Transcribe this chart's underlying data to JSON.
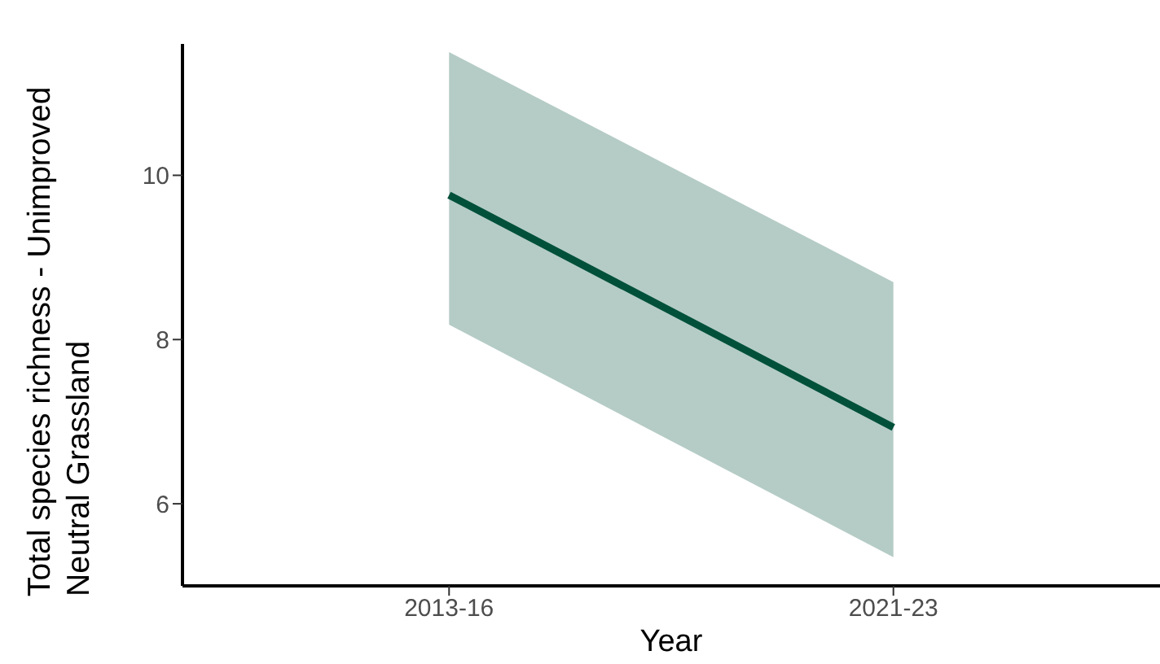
{
  "chart_data": {
    "type": "line",
    "xlabel": "Year",
    "ylabel": "Total species richness - Unimproved Neutral Grassland",
    "categories": [
      "2013-16",
      "2021-23"
    ],
    "series": [
      {
        "color": "#00503a",
        "values": [
          9.76,
          6.93
        ],
        "lower": [
          8.18,
          5.35
        ],
        "upper": [
          11.5,
          8.7
        ]
      }
    ],
    "ylim": [
      5,
      11.6
    ],
    "yticks": [
      6,
      8,
      10
    ],
    "marker": "none",
    "line_style": "solid"
  }
}
